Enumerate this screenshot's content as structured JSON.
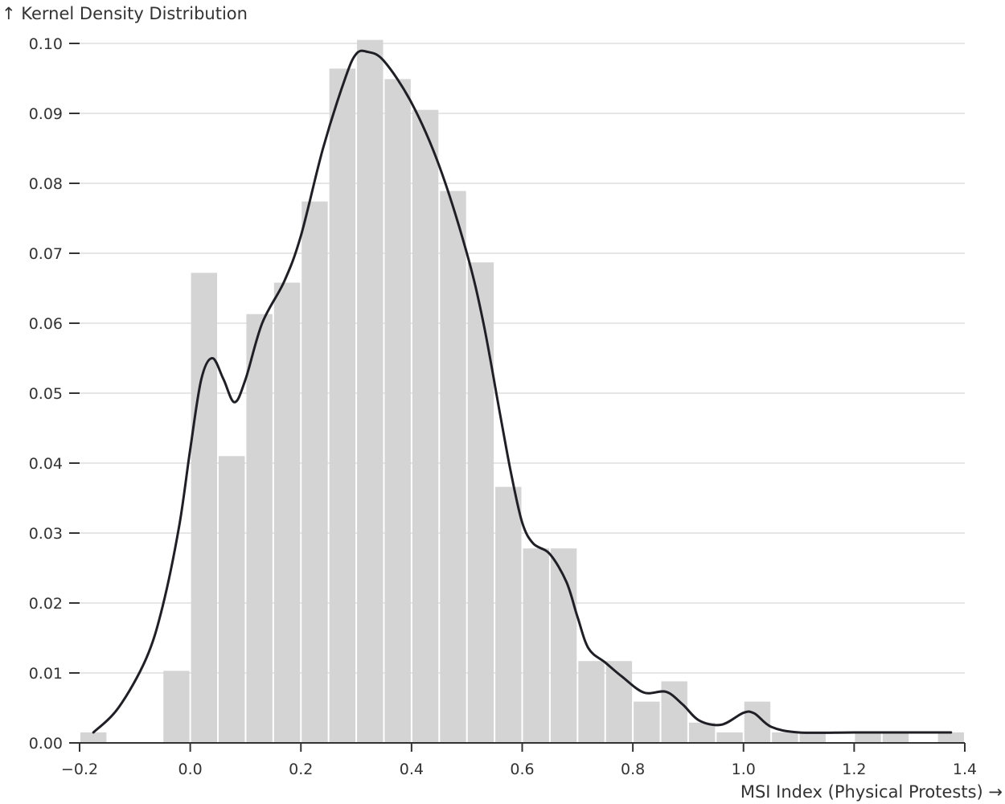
{
  "chart_data": {
    "type": "bar",
    "ylabel": "↑ Kernel Density Distribution",
    "xlabel": "MSI Index (Physical Protests) →",
    "xlim": [
      -0.2,
      1.4
    ],
    "ylim": [
      0,
      0.1
    ],
    "grid": true,
    "x_ticks": [
      -0.2,
      0.0,
      0.2,
      0.4,
      0.6,
      0.8,
      1.0,
      1.2,
      1.4
    ],
    "x_tick_labels": [
      "−0.2",
      "0.0",
      "0.2",
      "0.4",
      "0.6",
      "0.8",
      "1.0",
      "1.2",
      "1.4"
    ],
    "y_ticks": [
      0.0,
      0.01,
      0.02,
      0.03,
      0.04,
      0.05,
      0.06,
      0.07,
      0.08,
      0.09,
      0.1
    ],
    "y_tick_labels": [
      "0.00",
      "0.01",
      "0.02",
      "0.03",
      "0.04",
      "0.05",
      "0.06",
      "0.07",
      "0.08",
      "0.09",
      "0.10"
    ],
    "histogram": {
      "bin_width": 0.05,
      "bins": [
        {
          "x0": -0.2,
          "x1": -0.15,
          "density": 0.0015
        },
        {
          "x0": -0.05,
          "x1": 0.0,
          "density": 0.0103
        },
        {
          "x0": 0.0,
          "x1": 0.05,
          "density": 0.0672
        },
        {
          "x0": 0.05,
          "x1": 0.1,
          "density": 0.041
        },
        {
          "x0": 0.1,
          "x1": 0.15,
          "density": 0.0613
        },
        {
          "x0": 0.15,
          "x1": 0.2,
          "density": 0.0658
        },
        {
          "x0": 0.2,
          "x1": 0.25,
          "density": 0.0774
        },
        {
          "x0": 0.25,
          "x1": 0.3,
          "density": 0.0964
        },
        {
          "x0": 0.3,
          "x1": 0.35,
          "density": 0.1005
        },
        {
          "x0": 0.35,
          "x1": 0.4,
          "density": 0.0949
        },
        {
          "x0": 0.4,
          "x1": 0.45,
          "density": 0.0905
        },
        {
          "x0": 0.45,
          "x1": 0.5,
          "density": 0.0789
        },
        {
          "x0": 0.5,
          "x1": 0.55,
          "density": 0.0687
        },
        {
          "x0": 0.55,
          "x1": 0.6,
          "density": 0.0366
        },
        {
          "x0": 0.6,
          "x1": 0.65,
          "density": 0.0278
        },
        {
          "x0": 0.65,
          "x1": 0.7,
          "density": 0.0278
        },
        {
          "x0": 0.7,
          "x1": 0.75,
          "density": 0.0117
        },
        {
          "x0": 0.75,
          "x1": 0.8,
          "density": 0.0117
        },
        {
          "x0": 0.8,
          "x1": 0.85,
          "density": 0.0059
        },
        {
          "x0": 0.85,
          "x1": 0.9,
          "density": 0.0088
        },
        {
          "x0": 0.9,
          "x1": 0.95,
          "density": 0.0029
        },
        {
          "x0": 0.95,
          "x1": 1.0,
          "density": 0.0015
        },
        {
          "x0": 1.0,
          "x1": 1.05,
          "density": 0.0059
        },
        {
          "x0": 1.05,
          "x1": 1.1,
          "density": 0.0015
        },
        {
          "x0": 1.1,
          "x1": 1.15,
          "density": 0.0015
        },
        {
          "x0": 1.2,
          "x1": 1.25,
          "density": 0.0015
        },
        {
          "x0": 1.25,
          "x1": 1.3,
          "density": 0.0015
        },
        {
          "x0": 1.35,
          "x1": 1.4,
          "density": 0.0015
        }
      ]
    },
    "kde": {
      "x": [
        -0.175,
        -0.13,
        -0.08,
        -0.05,
        -0.02,
        0.0,
        0.02,
        0.04,
        0.06,
        0.08,
        0.1,
        0.13,
        0.17,
        0.2,
        0.24,
        0.28,
        0.3,
        0.32,
        0.35,
        0.4,
        0.45,
        0.5,
        0.53,
        0.56,
        0.58,
        0.6,
        0.62,
        0.65,
        0.68,
        0.7,
        0.72,
        0.75,
        0.78,
        0.82,
        0.86,
        0.89,
        0.92,
        0.96,
        1.0,
        1.02,
        1.05,
        1.1,
        1.2,
        1.3,
        1.375
      ],
      "y": [
        0.0015,
        0.005,
        0.012,
        0.0195,
        0.031,
        0.042,
        0.052,
        0.055,
        0.052,
        0.0487,
        0.052,
        0.06,
        0.066,
        0.0725,
        0.085,
        0.095,
        0.0985,
        0.0988,
        0.0975,
        0.0915,
        0.0825,
        0.07,
        0.06,
        0.047,
        0.0385,
        0.0315,
        0.0285,
        0.027,
        0.023,
        0.018,
        0.0135,
        0.0115,
        0.0095,
        0.0072,
        0.0073,
        0.0055,
        0.0032,
        0.0026,
        0.0043,
        0.0042,
        0.0023,
        0.0015,
        0.0015,
        0.0015,
        0.0015
      ]
    }
  }
}
